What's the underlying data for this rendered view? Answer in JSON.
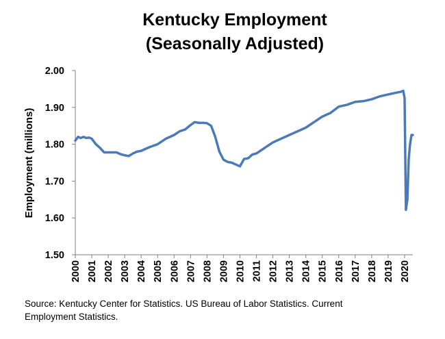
{
  "chart_data": {
    "type": "line",
    "title_lines": [
      "Kentucky Employment",
      "(Seasonally Adjusted)"
    ],
    "xlabel": "",
    "ylabel": "Employment (millions)",
    "ylim": [
      1.5,
      2.0
    ],
    "yticks": [
      "1.50",
      "1.60",
      "1.70",
      "1.80",
      "1.90",
      "2.00"
    ],
    "xlim": [
      2000,
      2020.5
    ],
    "xticks": [
      "2000",
      "2001",
      "2002",
      "2003",
      "2004",
      "2005",
      "2006",
      "2007",
      "2008",
      "2009",
      "2010",
      "2011",
      "2012",
      "2013",
      "2014",
      "2015",
      "2016",
      "2017",
      "2018",
      "2019",
      "2020"
    ],
    "grid": false,
    "legend": "none",
    "line_color": "#4a7ab8",
    "series": [
      {
        "x": [
          2000.0,
          2000.17,
          2000.33,
          2000.5,
          2000.67,
          2000.83,
          2001.0,
          2001.25,
          2001.5,
          2001.75,
          2002.0,
          2002.25,
          2002.5,
          2002.75,
          2003.0,
          2003.25,
          2003.5,
          2003.75,
          2004.0,
          2004.5,
          2005.0,
          2005.5,
          2006.0,
          2006.33,
          2006.67,
          2007.0,
          2007.25,
          2007.5,
          2007.75,
          2008.0,
          2008.25,
          2008.5,
          2008.75,
          2009.0,
          2009.25,
          2009.5,
          2009.75,
          2010.0,
          2010.25,
          2010.5,
          2010.75,
          2011.0,
          2011.5,
          2012.0,
          2012.5,
          2013.0,
          2013.5,
          2014.0,
          2014.5,
          2015.0,
          2015.5,
          2016.0,
          2016.5,
          2017.0,
          2017.5,
          2018.0,
          2018.5,
          2019.0,
          2019.5,
          2019.75,
          2019.92,
          2020.0,
          2020.08,
          2020.17,
          2020.25,
          2020.33,
          2020.42,
          2020.5
        ],
        "y": [
          1.81,
          1.82,
          1.817,
          1.82,
          1.817,
          1.818,
          1.815,
          1.8,
          1.79,
          1.778,
          1.778,
          1.778,
          1.778,
          1.773,
          1.77,
          1.768,
          1.775,
          1.78,
          1.782,
          1.792,
          1.8,
          1.815,
          1.825,
          1.835,
          1.84,
          1.852,
          1.86,
          1.858,
          1.858,
          1.857,
          1.85,
          1.82,
          1.78,
          1.758,
          1.752,
          1.75,
          1.745,
          1.74,
          1.76,
          1.762,
          1.772,
          1.775,
          1.79,
          1.805,
          1.815,
          1.825,
          1.835,
          1.845,
          1.86,
          1.875,
          1.885,
          1.902,
          1.907,
          1.915,
          1.917,
          1.922,
          1.93,
          1.935,
          1.94,
          1.942,
          1.945,
          1.925,
          1.622,
          1.65,
          1.76,
          1.8,
          1.825,
          1.825
        ]
      }
    ]
  },
  "source_lines": [
    "Source: Kentucky Center for Statistics. US Bureau of Labor Statistics. Current",
    "Employment Statistics."
  ]
}
